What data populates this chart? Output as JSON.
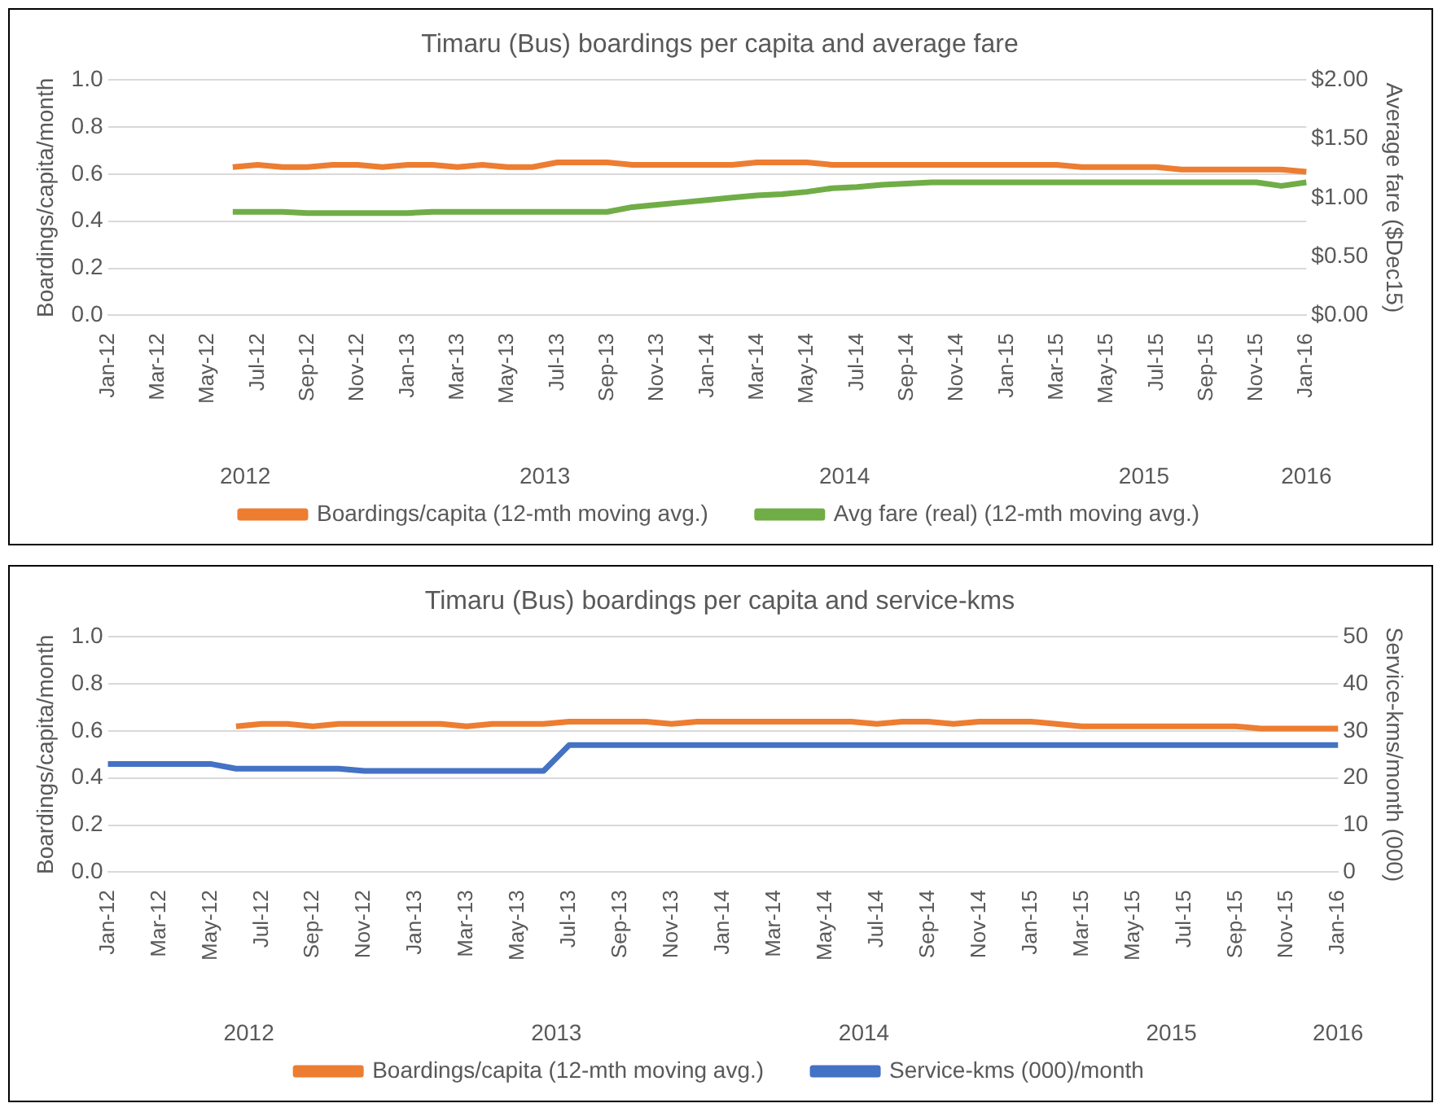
{
  "chart_data": [
    {
      "type": "line",
      "title": "Timaru (Bus) boardings per capita and average fare",
      "ylabel": "Boardings/capita/month",
      "y2label": "Average fare ($Dec15)",
      "categories": [
        "Jan-12",
        null,
        "Mar-12",
        null,
        "May-12",
        null,
        "Jul-12",
        null,
        "Sep-12",
        null,
        "Nov-12",
        null,
        "Jan-13",
        null,
        "Mar-13",
        null,
        "May-13",
        null,
        "Jul-13",
        null,
        "Sep-13",
        null,
        "Nov-13",
        null,
        "Jan-14",
        null,
        "Mar-14",
        null,
        "May-14",
        null,
        "Jul-14",
        null,
        "Sep-14",
        null,
        "Nov-14",
        null,
        "Jan-15",
        null,
        "Mar-15",
        null,
        "May-15",
        null,
        "Jul-15",
        null,
        "Sep-15",
        null,
        "Nov-15",
        null,
        "Jan-16"
      ],
      "series": [
        {
          "name": "Boardings/capita (12-mth moving avg.)",
          "color": "#ed7d31",
          "values": [
            null,
            null,
            null,
            null,
            null,
            0.63,
            0.64,
            0.63,
            0.63,
            0.64,
            0.64,
            0.63,
            0.64,
            0.64,
            0.63,
            0.64,
            0.63,
            0.63,
            0.65,
            0.65,
            0.65,
            0.64,
            0.64,
            0.64,
            0.64,
            0.64,
            0.65,
            0.65,
            0.65,
            0.64,
            0.64,
            0.64,
            0.64,
            0.64,
            0.64,
            0.64,
            0.64,
            0.64,
            0.64,
            0.63,
            0.63,
            0.63,
            0.63,
            0.62,
            0.62,
            0.62,
            0.62,
            0.62,
            0.61
          ]
        },
        {
          "name": "Avg fare (real) (12-mth moving avg.)",
          "color": "#70ad47",
          "axis": "y2",
          "values": [
            null,
            null,
            null,
            null,
            null,
            0.88,
            0.88,
            0.88,
            0.87,
            0.87,
            0.87,
            0.87,
            0.87,
            0.88,
            0.88,
            0.88,
            0.88,
            0.88,
            0.88,
            0.88,
            0.88,
            0.92,
            0.94,
            0.96,
            0.98,
            1.0,
            1.02,
            1.03,
            1.05,
            1.08,
            1.09,
            1.11,
            1.12,
            1.13,
            1.13,
            1.13,
            1.13,
            1.13,
            1.13,
            1.13,
            1.13,
            1.13,
            1.13,
            1.13,
            1.13,
            1.13,
            1.13,
            1.1,
            1.13
          ]
        }
      ],
      "ylim": [
        0,
        1
      ],
      "yticks": [
        {
          "value": 0,
          "label": "0.0"
        },
        {
          "value": 0.2,
          "label": "0.2"
        },
        {
          "value": 0.4,
          "label": "0.4"
        },
        {
          "value": 0.6,
          "label": "0.6"
        },
        {
          "value": 0.8,
          "label": "0.8"
        },
        {
          "value": 1,
          "label": "1.0"
        }
      ],
      "y2lim": [
        0,
        2
      ],
      "y2ticks": [
        {
          "value": 0,
          "label": "$0.00"
        },
        {
          "value": 0.5,
          "label": "$0.50"
        },
        {
          "value": 1,
          "label": "$1.00"
        },
        {
          "value": 1.5,
          "label": "$1.50"
        },
        {
          "value": 2,
          "label": "$2.00"
        }
      ],
      "annotations": [
        "2012",
        "2013",
        "2014",
        "2015",
        "2016"
      ],
      "grid": "y",
      "legend": "bottom",
      "marker": "none",
      "line_style": "solid"
    },
    {
      "type": "line",
      "title": "Timaru (Bus) boardings per capita and service-kms",
      "ylabel": "Boardings/capita/month",
      "y2label": "Service-kms/month (000)",
      "categories": [
        "Jan-12",
        null,
        "Mar-12",
        null,
        "May-12",
        null,
        "Jul-12",
        null,
        "Sep-12",
        null,
        "Nov-12",
        null,
        "Jan-13",
        null,
        "Mar-13",
        null,
        "May-13",
        null,
        "Jul-13",
        null,
        "Sep-13",
        null,
        "Nov-13",
        null,
        "Jan-14",
        null,
        "Mar-14",
        null,
        "May-14",
        null,
        "Jul-14",
        null,
        "Sep-14",
        null,
        "Nov-14",
        null,
        "Jan-15",
        null,
        "Mar-15",
        null,
        "May-15",
        null,
        "Jul-15",
        null,
        "Sep-15",
        null,
        "Nov-15",
        null,
        "Jan-16"
      ],
      "series": [
        {
          "name": "Boardings/capita (12-mth moving avg.)",
          "color": "#ed7d31",
          "values": [
            null,
            null,
            null,
            null,
            null,
            0.62,
            0.63,
            0.63,
            0.62,
            0.63,
            0.63,
            0.63,
            0.63,
            0.63,
            0.62,
            0.63,
            0.63,
            0.63,
            0.64,
            0.64,
            0.64,
            0.64,
            0.63,
            0.64,
            0.64,
            0.64,
            0.64,
            0.64,
            0.64,
            0.64,
            0.63,
            0.64,
            0.64,
            0.63,
            0.64,
            0.64,
            0.64,
            0.63,
            0.62,
            0.62,
            0.62,
            0.62,
            0.62,
            0.62,
            0.62,
            0.61,
            0.61,
            0.61,
            0.61
          ]
        },
        {
          "name": "Service-kms (000)/month",
          "color": "#4472c4",
          "axis": "y2",
          "values": [
            23,
            23,
            23,
            23,
            23,
            22,
            22,
            22,
            22,
            22,
            21.5,
            21.5,
            21.5,
            21.5,
            21.5,
            21.5,
            21.5,
            21.5,
            27,
            27,
            27,
            27,
            27,
            27,
            27,
            27,
            27,
            27,
            27,
            27,
            27,
            27,
            27,
            27,
            27,
            27,
            27,
            27,
            27,
            27,
            27,
            27,
            27,
            27,
            27,
            27,
            27,
            27,
            27
          ]
        }
      ],
      "ylim": [
        0,
        1
      ],
      "yticks": [
        {
          "value": 0,
          "label": "0.0"
        },
        {
          "value": 0.2,
          "label": "0.2"
        },
        {
          "value": 0.4,
          "label": "0.4"
        },
        {
          "value": 0.6,
          "label": "0.6"
        },
        {
          "value": 0.8,
          "label": "0.8"
        },
        {
          "value": 1,
          "label": "1.0"
        }
      ],
      "y2lim": [
        0,
        50
      ],
      "y2ticks": [
        0,
        10,
        20,
        30,
        40,
        50
      ],
      "annotations": [
        "2012",
        "2013",
        "2014",
        "2015",
        "2016"
      ],
      "grid": "y",
      "legend": "bottom",
      "marker": "none",
      "line_style": "solid"
    }
  ]
}
